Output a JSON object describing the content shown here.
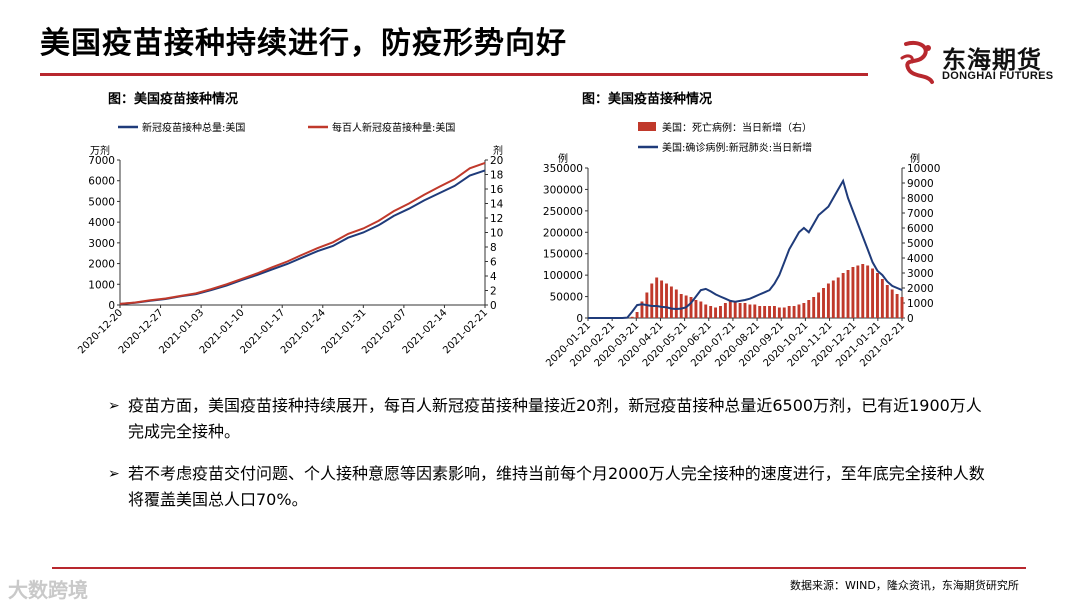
{
  "page": {
    "title": "美国疫苗接种持续进行，防疫形势向好",
    "logo_cn": "东海期货",
    "logo_en": "DONGHAI FUTURES",
    "source": "数据来源：WIND，隆众资讯，东海期货研究所",
    "watermark": "大数跨境",
    "bullets": [
      "疫苗方面，美国疫苗接种持续展开，每百人新冠疫苗接种量接近20剂，新冠疫苗接种总量近6500万剂，已有近1900万人完成完全接种。",
      "若不考虑疫苗交付问题、个人接种意愿等因素影响，维持当前每个月2000万人完全接种的速度进行，至年底完全接种人数将覆盖美国总人口70%。"
    ],
    "bullet_marks": [
      "➢",
      "➢"
    ],
    "colors": {
      "accent": "#b8282e",
      "navy": "#1f3b7a",
      "red": "#c0392b"
    }
  },
  "chart_data": [
    {
      "type": "line",
      "title": "图：美国疫苗接种情况",
      "left_unit": "万剂",
      "right_unit": "剂",
      "x_ticks": [
        "2020-12-20",
        "2020-12-27",
        "2021-01-03",
        "2021-01-10",
        "2021-01-17",
        "2021-01-24",
        "2021-01-31",
        "2021-02-07",
        "2021-02-14",
        "2021-02-21"
      ],
      "y_left_ticks": [
        "0",
        "1000",
        "2000",
        "3000",
        "4000",
        "5000",
        "6000",
        "7000"
      ],
      "y_right_ticks": [
        "0",
        "2",
        "4",
        "6",
        "8",
        "10",
        "12",
        "14",
        "16",
        "18",
        "20"
      ],
      "ylim_left": [
        0,
        7000
      ],
      "ylim_right": [
        0,
        20
      ],
      "series": [
        {
          "name": "新冠疫苗接种总量:美国",
          "axis": "left",
          "color": "#1f3b7a",
          "values": [
            50,
            110,
            210,
            290,
            420,
            520,
            720,
            940,
            1200,
            1450,
            1720,
            1980,
            2300,
            2600,
            2850,
            3250,
            3500,
            3850,
            4300,
            4650,
            5050,
            5400,
            5750,
            6250,
            6500
          ]
        },
        {
          "name": "每百人新冠疫苗接种量:美国",
          "axis": "right",
          "color": "#c0392b",
          "values": [
            0.15,
            0.35,
            0.65,
            0.9,
            1.25,
            1.6,
            2.2,
            2.85,
            3.6,
            4.35,
            5.2,
            6.0,
            6.95,
            7.85,
            8.65,
            9.8,
            10.55,
            11.6,
            12.95,
            14.0,
            15.2,
            16.3,
            17.35,
            18.85,
            19.6
          ]
        }
      ]
    },
    {
      "type": "bar-line",
      "title": "图：美国疫苗接种情况",
      "left_unit": "例",
      "right_unit": "例",
      "x_ticks": [
        "2020-01-21",
        "2020-02-21",
        "2020-03-21",
        "2020-04-21",
        "2020-05-21",
        "2020-06-21",
        "2020-07-21",
        "2020-08-21",
        "2020-09-21",
        "2020-10-21",
        "2020-11-21",
        "2020-12-21",
        "2021-01-21",
        "2021-02-21"
      ],
      "y_left_ticks": [
        "0",
        "50000",
        "100000",
        "150000",
        "200000",
        "250000",
        "300000",
        "350000"
      ],
      "y_right_ticks": [
        "0",
        "1000",
        "2000",
        "3000",
        "4000",
        "5000",
        "6000",
        "7000",
        "8000",
        "9000",
        "10000"
      ],
      "ylim_left": [
        0,
        350000
      ],
      "ylim_right": [
        0,
        10000
      ],
      "series": [
        {
          "name": "美国：死亡病例：当日新增（右）",
          "axis": "right",
          "kind": "bar",
          "color": "#c0392b",
          "values": [
            0,
            0,
            0,
            0,
            0,
            0,
            0,
            0,
            10,
            80,
            400,
            1100,
            1700,
            2300,
            2700,
            2500,
            2300,
            2100,
            1900,
            1600,
            1500,
            1400,
            1200,
            1100,
            900,
            800,
            700,
            800,
            1000,
            1200,
            1100,
            1000,
            1000,
            900,
            900,
            800,
            800,
            800,
            800,
            700,
            700,
            800,
            800,
            900,
            1000,
            1200,
            1400,
            1700,
            2000,
            2300,
            2500,
            2700,
            3000,
            3200,
            3400,
            3500,
            3600,
            3500,
            3300,
            3000,
            2600,
            2200,
            1900,
            1600,
            1400
          ]
        },
        {
          "name": "美国:确诊病例:新冠肺炎:当日新增",
          "axis": "left",
          "kind": "line",
          "color": "#1f3b7a",
          "values": [
            0,
            0,
            0,
            0,
            0,
            0,
            0,
            0,
            1000,
            15000,
            30000,
            32000,
            30000,
            28000,
            28000,
            26000,
            25000,
            22000,
            21000,
            22000,
            25000,
            35000,
            50000,
            65000,
            68000,
            62000,
            55000,
            50000,
            45000,
            40000,
            38000,
            40000,
            42000,
            45000,
            50000,
            55000,
            60000,
            65000,
            80000,
            100000,
            130000,
            160000,
            180000,
            200000,
            210000,
            200000,
            220000,
            240000,
            250000,
            260000,
            280000,
            300000,
            320000,
            280000,
            250000,
            220000,
            190000,
            160000,
            130000,
            110000,
            100000,
            85000,
            75000,
            70000,
            65000
          ]
        }
      ]
    }
  ]
}
